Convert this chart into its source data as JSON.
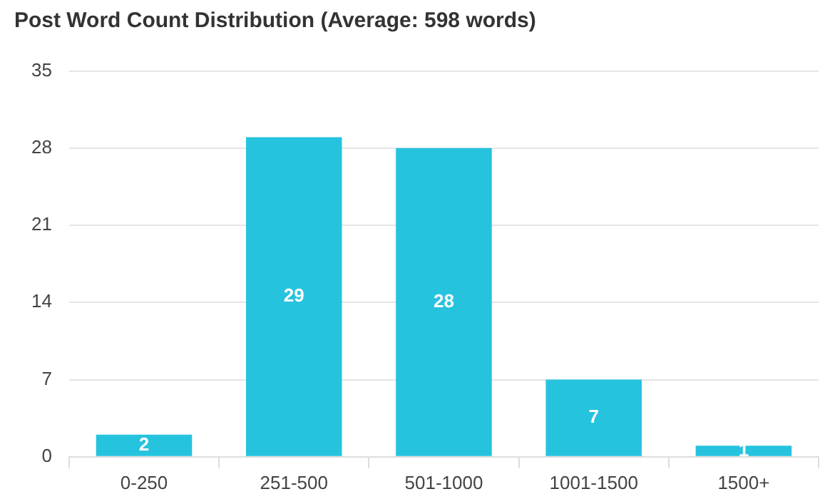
{
  "chart_data": {
    "type": "bar",
    "title": "Post Word Count Distribution (Average: 598 words)",
    "categories": [
      "0-250",
      "251-500",
      "501-1000",
      "1001-1500",
      "1500+"
    ],
    "values": [
      2,
      29,
      28,
      7,
      1
    ],
    "color": "#26c3df",
    "ylim": [
      0,
      35
    ],
    "yticks": [
      0,
      7,
      14,
      21,
      28,
      35
    ],
    "grid": "y",
    "data_labels": true,
    "legend": false
  }
}
